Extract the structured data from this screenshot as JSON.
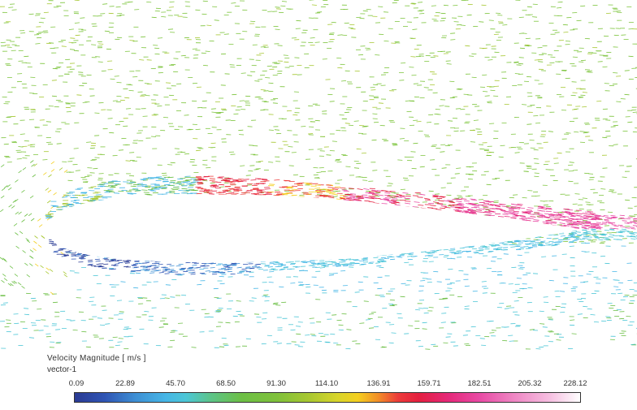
{
  "legend": {
    "title": "Velocity Magnitude [ m/s ]",
    "subtitle": "vector-1",
    "ticks": [
      "0.09",
      "22.89",
      "45.70",
      "68.50",
      "91.30",
      "114.10",
      "136.91",
      "159.71",
      "182.51",
      "205.32",
      "228.12"
    ],
    "range": [
      0.09,
      228.12
    ],
    "colors": [
      "#2a3a93",
      "#3e8fd4",
      "#46b6e6",
      "#6cbf45",
      "#a6c731",
      "#f4cf1f",
      "#ec3b3a",
      "#e41f3f",
      "#e84aa4",
      "#f6bfe1",
      "#ffffff"
    ]
  },
  "field": {
    "type": "vector-field",
    "freestream_color": "#6cbf45",
    "airfoil_fill": "#ffffff"
  }
}
